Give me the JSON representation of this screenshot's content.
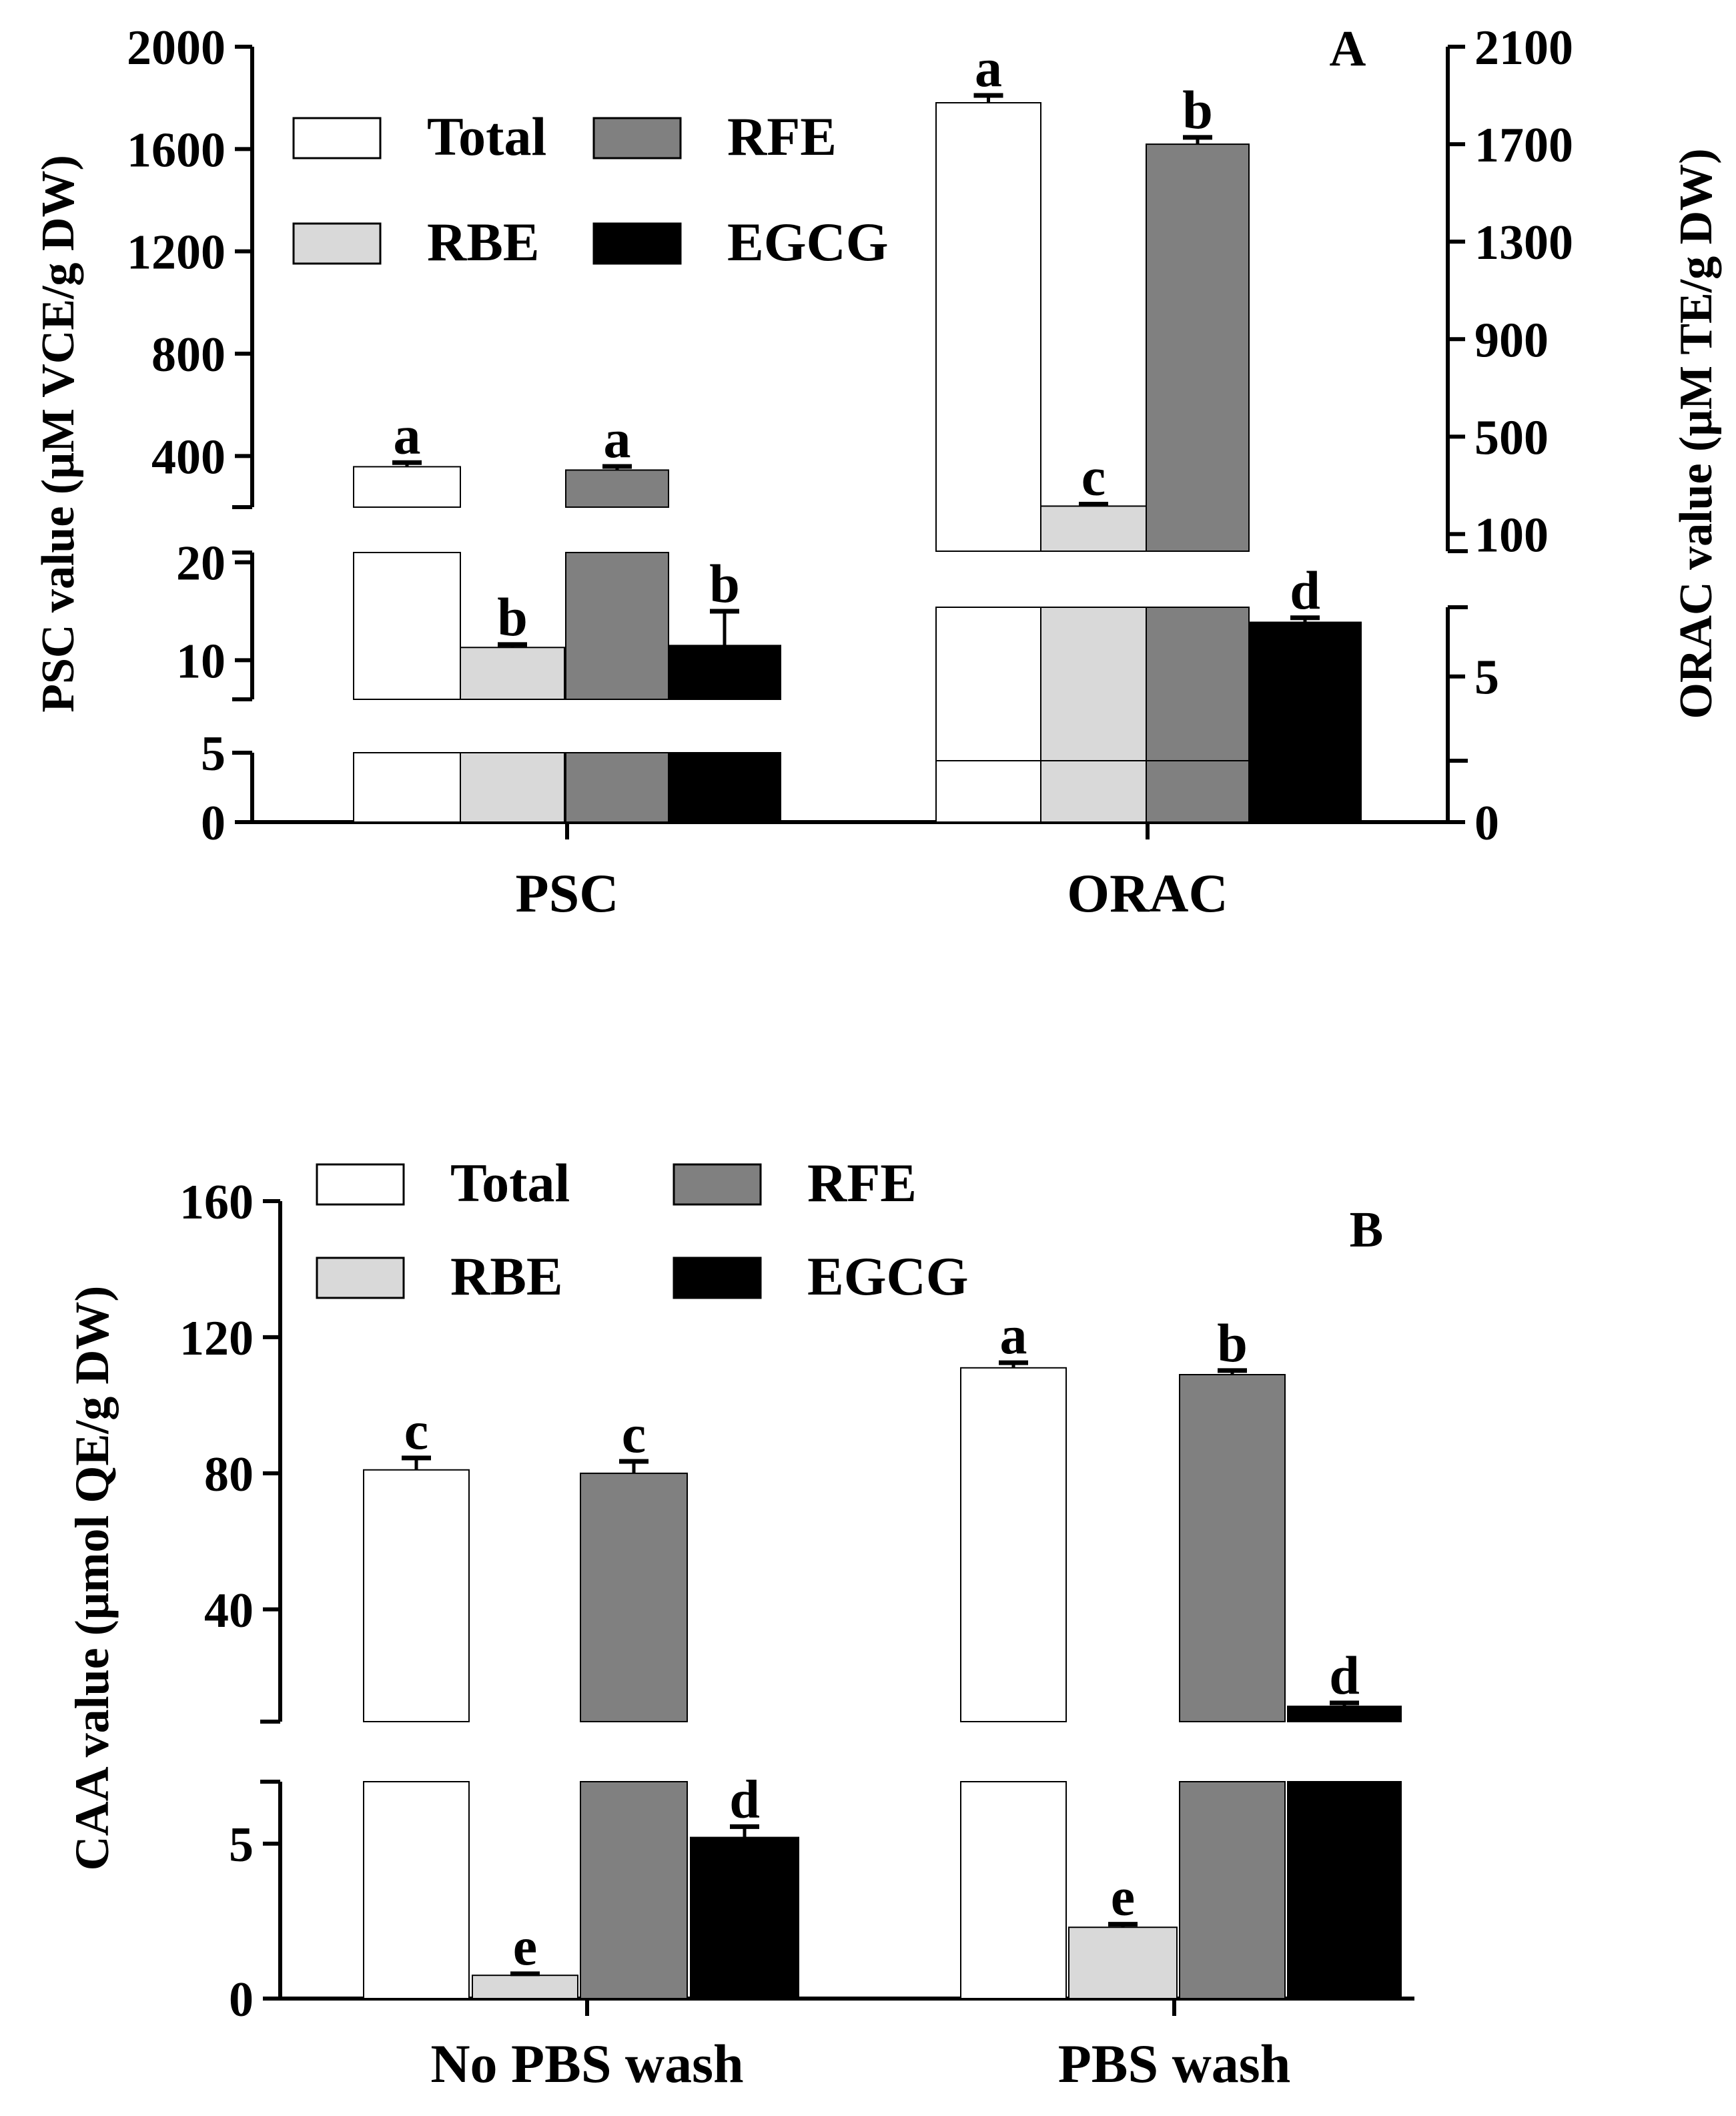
{
  "chart_data": [
    {
      "panel": "A",
      "type": "bar",
      "categories": [
        "PSC",
        "ORAC"
      ],
      "series_names": [
        "Total",
        "RBE",
        "RFE",
        "EGCG"
      ],
      "series_colors": [
        "#ffffff",
        "#d9d9d9",
        "#808080",
        "#000000"
      ],
      "series": [
        {
          "name": "Total",
          "values": [
            358,
            1870
          ],
          "errors": [
            16,
            30
          ],
          "letters": [
            "a",
            "a"
          ]
        },
        {
          "name": "RBE",
          "values": [
            11.3,
            215
          ],
          "errors": [
            0.3,
            8
          ],
          "letters": [
            "b",
            "c"
          ]
        },
        {
          "name": "RFE",
          "values": [
            345,
            1700
          ],
          "errors": [
            14,
            28
          ],
          "letters": [
            "a",
            "b"
          ]
        },
        {
          "name": "EGCG",
          "values": [
            11.5,
            6.8
          ],
          "errors": [
            3.5,
            0.15
          ],
          "letters": [
            "b",
            "d"
          ]
        }
      ],
      "value_axis": [
        "left",
        "right"
      ],
      "left_axis": {
        "label": "PSC value (μM VCE/g DW)",
        "segments": [
          {
            "range": [
              0,
              5
            ],
            "ticks": [
              "0",
              "5"
            ]
          },
          {
            "range": [
              6,
              21
            ],
            "ticks": [
              "10",
              "20"
            ]
          },
          {
            "range": [
              200,
              2000
            ],
            "ticks": [
              "400",
              "800",
              "1200",
              "1600",
              "2000"
            ]
          }
        ]
      },
      "right_axis": {
        "label": "ORAC value (μM TE/g DW)",
        "segments": [
          {
            "range": [
              0,
              2.2
            ],
            "ticks": [
              "0"
            ]
          },
          {
            "range": [
              2.2,
              7.3
            ],
            "ticks": [
              "5"
            ]
          },
          {
            "range": [
              30,
              2100
            ],
            "ticks": [
              "100",
              "500",
              "900",
              "1300",
              "1700",
              "2100"
            ]
          }
        ]
      },
      "legend": {
        "position": "top-left",
        "labels": [
          "Total",
          "RFE",
          "RBE",
          "EGCG"
        ]
      },
      "panel_label": "A"
    },
    {
      "panel": "B",
      "type": "bar",
      "categories": [
        "No PBS wash",
        "PBS wash"
      ],
      "series_names": [
        "Total",
        "RBE",
        "RFE",
        "EGCG"
      ],
      "series_colors": [
        "#ffffff",
        "#d9d9d9",
        "#808080",
        "#000000"
      ],
      "series": [
        {
          "name": "Total",
          "values": [
            81,
            111
          ],
          "errors": [
            3.5,
            1.5
          ],
          "letters": [
            "c",
            "a"
          ]
        },
        {
          "name": "RBE",
          "values": [
            0.75,
            2.3
          ],
          "errors": [
            0.05,
            0.1
          ],
          "letters": [
            "e",
            "e"
          ]
        },
        {
          "name": "RFE",
          "values": [
            80,
            109
          ],
          "errors": [
            3.5,
            1.2
          ],
          "letters": [
            "c",
            "b"
          ]
        },
        {
          "name": "EGCG",
          "values": [
            5.2,
            11.5
          ],
          "errors": [
            0.35,
            1.0
          ],
          "letters": [
            "d",
            "d"
          ]
        }
      ],
      "y_axis": {
        "label": "CAA value (μmol QE/g DW)",
        "segments": [
          {
            "range": [
              0,
              7
            ],
            "ticks": [
              "0",
              "5"
            ]
          },
          {
            "range": [
              7,
              160
            ],
            "ticks": [
              "40",
              "80",
              "120",
              "160"
            ]
          }
        ]
      },
      "legend": {
        "position": "top-left",
        "labels": [
          "Total",
          "RFE",
          "RBE",
          "EGCG"
        ]
      },
      "panel_label": "B"
    }
  ]
}
